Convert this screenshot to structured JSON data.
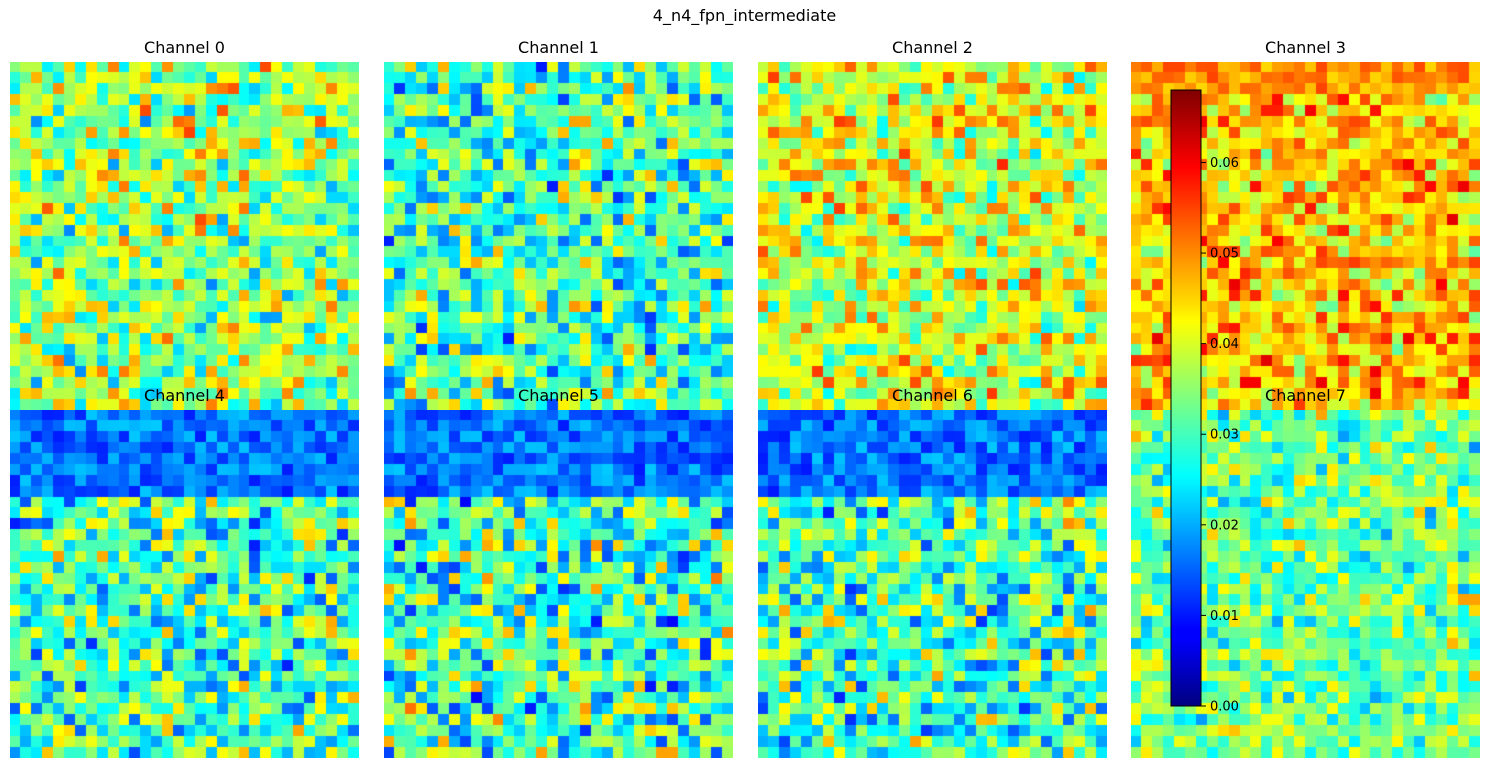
{
  "figure": {
    "title": "4_n4_fpn_intermediate"
  },
  "chart_data": {
    "type": "heatmap",
    "title": "4_n4_fpn_intermediate",
    "colormap": "jet",
    "grid": false,
    "panels": [
      {
        "id": 0,
        "title": "Channel 0",
        "grid_size": [
          32,
          32
        ],
        "mean_level": 0.036,
        "variation": 0.012
      },
      {
        "id": 1,
        "title": "Channel 1",
        "grid_size": [
          32,
          32
        ],
        "mean_level": 0.03,
        "variation": 0.013
      },
      {
        "id": 2,
        "title": "Channel 2",
        "grid_size": [
          32,
          32
        ],
        "mean_level": 0.04,
        "variation": 0.011
      },
      {
        "id": 3,
        "title": "Channel 3",
        "grid_size": [
          32,
          32
        ],
        "mean_level": 0.046,
        "variation": 0.01
      },
      {
        "id": 4,
        "title": "Channel 4",
        "grid_size": [
          32,
          32
        ],
        "mean_level": 0.03,
        "variation": 0.013
      },
      {
        "id": 5,
        "title": "Channel 5",
        "grid_size": [
          32,
          32
        ],
        "mean_level": 0.03,
        "variation": 0.014
      },
      {
        "id": 6,
        "title": "Channel 6",
        "grid_size": [
          32,
          32
        ],
        "mean_level": 0.03,
        "variation": 0.013
      },
      {
        "id": 7,
        "title": "Channel 7",
        "grid_size": [
          32,
          32
        ],
        "mean_level": 0.033,
        "variation": 0.01
      }
    ],
    "colorbar": {
      "range": [
        0.0,
        0.068
      ],
      "ticks": [
        {
          "value": 0.0,
          "label": "0.00"
        },
        {
          "value": 0.01,
          "label": "0.01"
        },
        {
          "value": 0.02,
          "label": "0.02"
        },
        {
          "value": 0.03,
          "label": "0.03"
        },
        {
          "value": 0.04,
          "label": "0.04"
        },
        {
          "value": 0.05,
          "label": "0.05"
        },
        {
          "value": 0.06,
          "label": "0.06"
        }
      ]
    }
  }
}
